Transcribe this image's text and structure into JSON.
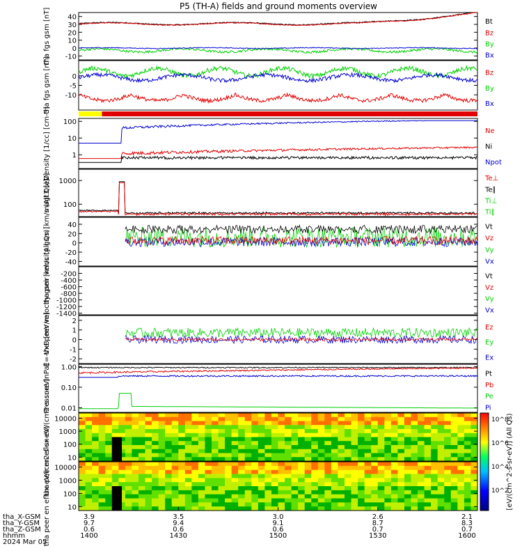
{
  "title": "P5 (TH-A) fields and ground moments overview",
  "bottom_axis": {
    "row_labels": [
      "tha_X-GSM",
      "tha_Y-GSM",
      "tha_Z-GSM",
      "hhmm",
      "2024 Mar 05"
    ],
    "columns": [
      {
        "x": "3.9",
        "y": "9.7",
        "z": "0.6",
        "hhmm": "1400"
      },
      {
        "x": "3.5",
        "y": "9.4",
        "z": "0.6",
        "hhmm": "1430"
      },
      {
        "x": "3.0",
        "y": "9.1",
        "z": "0.6",
        "hhmm": "1500"
      },
      {
        "x": "2.6",
        "y": "8.7",
        "z": "0.7",
        "hhmm": "1530"
      },
      {
        "x": "2.1",
        "y": "8.3",
        "z": "0.7",
        "hhmm": "1600"
      }
    ]
  },
  "colors": {
    "black": "#000000",
    "red": "#e00000",
    "green": "#00d000",
    "blue": "#0000d0",
    "yellow": "#ffff00"
  },
  "chart_data": [
    {
      "type": "line",
      "name": "fgs_gsm",
      "ylabel": "tha fgs gsm [nT]",
      "yticks": [
        "40",
        "30",
        "20",
        "10",
        "0",
        "-10"
      ],
      "ylim": [
        -15,
        45
      ],
      "series": [
        {
          "name": "Bt",
          "color": "black"
        },
        {
          "name": "Bz",
          "color": "red"
        },
        {
          "name": "By",
          "color": "green"
        },
        {
          "name": "Bx",
          "color": "blue"
        }
      ]
    },
    {
      "type": "line",
      "name": "fgs_gsm_dsl",
      "ylabel": "tha fgs gsm [nT]",
      "yticks": [
        "0",
        "-5",
        "-10"
      ],
      "ylim": [
        -18,
        8
      ],
      "series": [
        {
          "name": "Bz",
          "color": "red"
        },
        {
          "name": "By",
          "color": "green"
        },
        {
          "name": "Bx",
          "color": "blue"
        }
      ]
    },
    {
      "type": "bar",
      "name": "mode_bar",
      "segments": [
        {
          "color": "yellow",
          "from_min": 0,
          "to_min": 7
        },
        {
          "color": "red",
          "from_min": 7,
          "to_min": 120
        }
      ]
    },
    {
      "type": "line",
      "name": "density",
      "ylabel": "Density [1/cc] [cm-3]",
      "yticks": [
        "100",
        "10",
        "1"
      ],
      "scale": "log",
      "ylim": [
        0.15,
        150
      ],
      "series": [
        {
          "name": "Ne",
          "color": "red"
        },
        {
          "name": "Ni",
          "color": "black"
        },
        {
          "name": "Npot",
          "color": "blue"
        }
      ]
    },
    {
      "type": "line",
      "name": "temperature",
      "ylabel": "magt3 [eV]",
      "yticks": [
        "1000",
        "100"
      ],
      "scale": "log",
      "ylim": [
        30,
        3000
      ],
      "series": [
        {
          "name": "Te⊥",
          "color": "red"
        },
        {
          "name": "Te∥",
          "color": "black"
        },
        {
          "name": "Ti⊥",
          "color": "green"
        },
        {
          "name": "Ti∥",
          "color": "green"
        }
      ]
    },
    {
      "type": "line",
      "name": "peir_velocity",
      "ylabel": "tha peir velocity gsm [km/s (All Qs)]",
      "yticks": [
        "40",
        "20",
        "0",
        "-20",
        "-40"
      ],
      "ylim": [
        -50,
        55
      ],
      "series": [
        {
          "name": "Vt",
          "color": "black"
        },
        {
          "name": "Vz",
          "color": "red"
        },
        {
          "name": "Vy",
          "color": "green"
        },
        {
          "name": "Vx",
          "color": "blue"
        }
      ]
    },
    {
      "type": "line",
      "name": "peer_velocity",
      "ylabel": "tha peer velocity gsm [km/s (All Qs)]",
      "yticks": [
        "-200",
        "-400",
        "-600",
        "-800",
        "-1000",
        "-1200",
        "-1400"
      ],
      "ylim": [
        -1450,
        0
      ],
      "series": [
        {
          "name": "Vt",
          "color": "black"
        },
        {
          "name": "Vz",
          "color": "red"
        },
        {
          "name": "Vy",
          "color": "green"
        },
        {
          "name": "Vx",
          "color": "blue"
        }
      ]
    },
    {
      "type": "line",
      "name": "efield",
      "ylabel": "E=-VxB [mV/m]",
      "yticks": [
        "2",
        "1",
        "0",
        "-1",
        "-2"
      ],
      "ylim": [
        -2.5,
        2.5
      ],
      "series": [
        {
          "name": "Ez",
          "color": "red"
        },
        {
          "name": "Ey",
          "color": "green"
        },
        {
          "name": "Ex",
          "color": "blue"
        }
      ]
    },
    {
      "type": "line",
      "name": "pressure",
      "ylabel": "Pressure [nPa]",
      "yticks": [
        "1.00",
        "0.10",
        "0.01"
      ],
      "scale": "log",
      "ylim": [
        0.006,
        1.3
      ],
      "series": [
        {
          "name": "Pt",
          "color": "black"
        },
        {
          "name": "Pb",
          "color": "red"
        },
        {
          "name": "Pe",
          "color": "green"
        },
        {
          "name": "Pi",
          "color": "blue"
        }
      ]
    },
    {
      "type": "heatmap",
      "name": "peir_spectrogram",
      "ylabel": "tha peir en eflux eV/(cm2-s-sr-eV)",
      "yticks": [
        "10000",
        "1000",
        "100",
        "10"
      ],
      "scale": "log",
      "ylim": [
        5,
        25000
      ],
      "colorbar": {
        "label": "[eV/(cm^2-s-sr-eV)] (All Qs)",
        "ticks": [
          "10^8",
          "10^6",
          "10^4",
          "10^2"
        ]
      }
    },
    {
      "type": "heatmap",
      "name": "peer_spectrogram",
      "ylabel": "tha peer en eflux eV/(cm2-s-sr-eV)",
      "yticks": [
        "10000",
        "1000",
        "100",
        "10"
      ],
      "scale": "log",
      "ylim": [
        5,
        25000
      ],
      "colorbar": {
        "label": "",
        "ticks": [
          "10^8",
          "10^6",
          "10^4",
          "10^2"
        ]
      }
    }
  ]
}
